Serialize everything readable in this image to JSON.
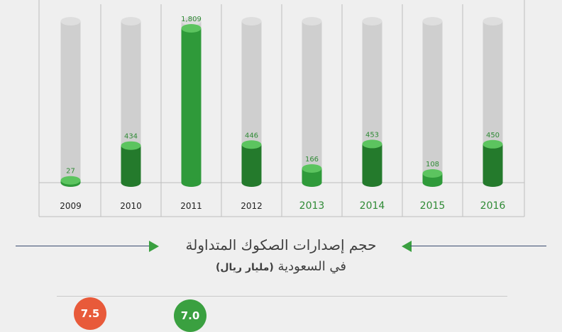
{
  "chart_data": {
    "type": "bar",
    "title_line1": "حجم إصدارات الصكوك المتداولة",
    "title_line2": "في السعودية",
    "unit": "(مليار ريال)",
    "categories": [
      "2009",
      "2010",
      "2011",
      "2012",
      "2013",
      "2014",
      "2015",
      "2016"
    ],
    "value_labels": [
      "27",
      "434",
      "1,809",
      "446",
      "166",
      "453",
      "108",
      "450"
    ],
    "values": [
      27,
      434,
      1809,
      446,
      166,
      453,
      108,
      450
    ],
    "ylim": [
      0,
      1809
    ],
    "grid": false,
    "colors": {
      "bar": "#2f9a3a",
      "bar_dark": "#247a2c",
      "bar_top": "#5cc45f",
      "track": "#cfcfcf",
      "track_top": "#dedede",
      "label": "#2f8a35",
      "year_dark": "#222222",
      "year_green": "#2f8a35",
      "divider": "#bdbdbd"
    }
  },
  "bottom": {
    "badge_1": "7.5",
    "badge_2": "7.0",
    "badge_1_color": "#e85a3a",
    "badge_2_color": "#3aa040"
  }
}
